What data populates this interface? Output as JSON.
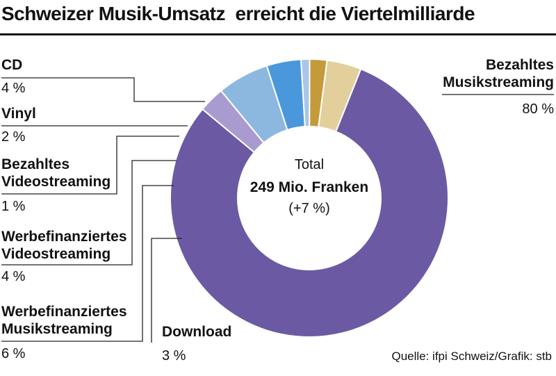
{
  "title": "Schweizer Musik-Umsatz  erreicht die Viertelmilliarde",
  "source": "Quelle: ifpi Schweiz/Grafik: stb",
  "center": {
    "line1": "Total",
    "line2": "249 Mio. Franken",
    "line3": "(+7 %)"
  },
  "chart_data": {
    "type": "pie",
    "donut": true,
    "total_label": "249 Mio. Franken",
    "change_label": "(+7 %)",
    "slices": [
      {
        "name": "Bezahltes Musikstreaming",
        "label_lines": [
          "Bezahltes",
          "Musikstreaming"
        ],
        "value_label": "80 %",
        "value": 80,
        "color": "#6b5aa3"
      },
      {
        "name": "Download",
        "label_lines": [
          "Download"
        ],
        "value_label": "3 %",
        "value": 3,
        "color": "#a99bcf"
      },
      {
        "name": "Werbefinanziertes Musikstreaming",
        "label_lines": [
          "Werbefinanziertes",
          "Musikstreaming"
        ],
        "value_label": "6 %",
        "value": 6,
        "color": "#8cb8e0"
      },
      {
        "name": "Werbefinanziertes Videostreaming",
        "label_lines": [
          "Werbefinanziertes",
          "Videostreaming"
        ],
        "value_label": "4 %",
        "value": 4,
        "color": "#4a98db"
      },
      {
        "name": "Bezahltes Videostreaming",
        "label_lines": [
          "Bezahltes",
          "Videostreaming"
        ],
        "value_label": "1 %",
        "value": 1,
        "color": "#a9c6e6"
      },
      {
        "name": "Vinyl",
        "label_lines": [
          "Vinyl"
        ],
        "value_label": "2 %",
        "value": 2,
        "color": "#c49a3a"
      },
      {
        "name": "CD",
        "label_lines": [
          "CD"
        ],
        "value_label": "4 %",
        "value": 4,
        "color": "#e2cf9c"
      }
    ]
  }
}
